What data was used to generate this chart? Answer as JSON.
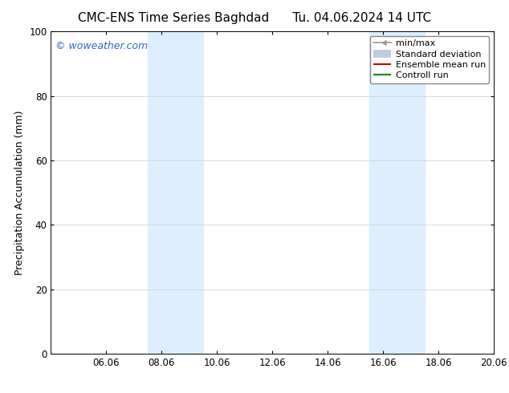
{
  "title_left": "CMC-ENS Time Series Baghdad",
  "title_right": "Tu. 04.06.2024 14 UTC",
  "ylabel": "Precipitation Accumulation (mm)",
  "ylim": [
    0,
    100
  ],
  "yticks": [
    0,
    20,
    40,
    60,
    80,
    100
  ],
  "x_min": 0,
  "x_max": 16,
  "xtick_labels": [
    "06.06",
    "08.06",
    "10.06",
    "12.06",
    "14.06",
    "16.06",
    "18.06",
    "20.06"
  ],
  "xtick_positions": [
    2,
    4,
    6,
    8,
    10,
    12,
    14,
    16
  ],
  "shaded_bands": [
    {
      "x_start": 3.5,
      "x_end": 5.5
    },
    {
      "x_start": 11.5,
      "x_end": 13.5
    }
  ],
  "shaded_color": "#ddeeff",
  "watermark": "© woweather.com",
  "watermark_color": "#3366cc",
  "legend_entries": [
    {
      "label": "min/max",
      "color": "#999999",
      "lw": 1.2,
      "type": "minmax"
    },
    {
      "label": "Standard deviation",
      "color": "#bbccdd",
      "lw": 7,
      "type": "band"
    },
    {
      "label": "Ensemble mean run",
      "color": "#cc0000",
      "lw": 1.5,
      "type": "line"
    },
    {
      "label": "Controll run",
      "color": "#008800",
      "lw": 1.5,
      "type": "line"
    }
  ],
  "background_color": "#ffffff",
  "grid_color": "#cccccc",
  "title_fontsize": 11,
  "ylabel_fontsize": 9,
  "tick_fontsize": 8.5,
  "watermark_fontsize": 9,
  "legend_fontsize": 8
}
